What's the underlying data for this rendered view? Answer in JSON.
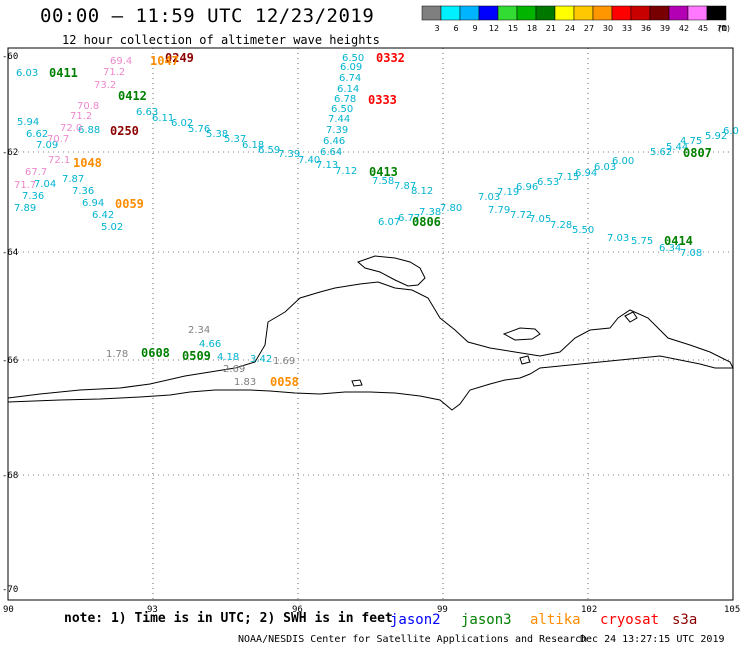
{
  "header": {
    "title": "00:00 – 11:59 UTC 12/23/2019",
    "subtitle": "12 hour collection of altimeter wave heights"
  },
  "colorbar": {
    "labels": [
      "3",
      "6",
      "9",
      "12",
      "15",
      "18",
      "21",
      "24",
      "27",
      "30",
      "33",
      "36",
      "39",
      "42",
      "45",
      "70"
    ],
    "unit": "(ft)",
    "colors": [
      "#7f7f7f",
      "#00f0ff",
      "#00b4ff",
      "#0000ff",
      "#32dc32",
      "#00b400",
      "#007800",
      "#ffff00",
      "#ffc800",
      "#ff9600",
      "#ff0000",
      "#c80000",
      "#780000",
      "#b400b4",
      "#ff78ff",
      "#000000"
    ]
  },
  "axes": {
    "x_ticks": [
      "90",
      "93",
      "96",
      "99",
      "102",
      "105"
    ],
    "y_ticks": [
      "-60",
      "-62",
      "-64",
      "-66",
      "-68",
      "-70"
    ]
  },
  "footer": {
    "note": "note:  1) Time is in UTC;  2) SWH is in feet",
    "satellites": [
      {
        "name": "jason2",
        "color": "#0000ff"
      },
      {
        "name": "jason3",
        "color": "#008000"
      },
      {
        "name": "altika",
        "color": "#ff8c00"
      },
      {
        "name": "cryosat",
        "color": "#ff0000"
      },
      {
        "name": "s3a",
        "color": "#8b0000"
      }
    ],
    "credit": "NOAA/NESDIS Center for Satellite Applications and Research",
    "timestamp": "Dec 24 13:27:15 UTC 2019"
  },
  "passes": [
    {
      "label": "0249",
      "color": "#8b0000"
    },
    {
      "label": "0332",
      "color": "#ff0000"
    },
    {
      "label": "0333",
      "color": "#ff0000"
    },
    {
      "label": "0411",
      "color": "#008000"
    },
    {
      "label": "0412",
      "color": "#008000"
    },
    {
      "label": "0250",
      "color": "#8b0000"
    },
    {
      "label": "1048",
      "color": "#ff8c00"
    },
    {
      "label": "0059",
      "color": "#ff8c00"
    },
    {
      "label": "0413",
      "color": "#008000"
    },
    {
      "label": "0806",
      "color": "#008000"
    },
    {
      "label": "0807",
      "color": "#008000"
    },
    {
      "label": "0414",
      "color": "#008000"
    },
    {
      "label": "0608",
      "color": "#008000"
    },
    {
      "label": "0509",
      "color": "#008000"
    },
    {
      "label": "0058",
      "color": "#ff8c00"
    },
    {
      "label": "1047",
      "color": "#ff8c00"
    }
  ],
  "values": [
    {
      "v": "6.03",
      "c": "#00b4d0"
    },
    {
      "v": "5.94",
      "c": "#00b4d0"
    },
    {
      "v": "6.62",
      "c": "#00b4d0"
    },
    {
      "v": "7.09",
      "c": "#00b4d0"
    },
    {
      "v": "7.04",
      "c": "#00b4d0"
    },
    {
      "v": "7.36",
      "c": "#00b4d0"
    },
    {
      "v": "7.89",
      "c": "#00b4d0"
    },
    {
      "v": "7.87",
      "c": "#00b4d0"
    },
    {
      "v": "7.36",
      "c": "#00b4d0"
    },
    {
      "v": "6.94",
      "c": "#00b4d0"
    },
    {
      "v": "6.42",
      "c": "#00b4d0"
    },
    {
      "v": "5.02",
      "c": "#00b4d0"
    },
    {
      "v": "6.88",
      "c": "#00b4d0"
    },
    {
      "v": "6.63",
      "c": "#00b4d0"
    },
    {
      "v": "6.11",
      "c": "#00b4d0"
    },
    {
      "v": "6.02",
      "c": "#00b4d0"
    },
    {
      "v": "5.76",
      "c": "#00b4d0"
    },
    {
      "v": "5.38",
      "c": "#00b4d0"
    },
    {
      "v": "5.37",
      "c": "#00b4d0"
    },
    {
      "v": "6.18",
      "c": "#00b4d0"
    },
    {
      "v": "6.59",
      "c": "#00b4d0"
    },
    {
      "v": "7.39",
      "c": "#00b4d0"
    },
    {
      "v": "7.40",
      "c": "#00b4d0"
    },
    {
      "v": "7.13",
      "c": "#00b4d0"
    },
    {
      "v": "7.12",
      "c": "#00b4d0"
    },
    {
      "v": "6.50",
      "c": "#00b4d0"
    },
    {
      "v": "6.09",
      "c": "#00b4d0"
    },
    {
      "v": "6.74",
      "c": "#00b4d0"
    },
    {
      "v": "6.14",
      "c": "#00b4d0"
    },
    {
      "v": "6.78",
      "c": "#00b4d0"
    },
    {
      "v": "6.50",
      "c": "#00b4d0"
    },
    {
      "v": "7.44",
      "c": "#00b4d0"
    },
    {
      "v": "7.39",
      "c": "#00b4d0"
    },
    {
      "v": "6.46",
      "c": "#00b4d0"
    },
    {
      "v": "6.64",
      "c": "#00b4d0"
    },
    {
      "v": "7.58",
      "c": "#00b4d0"
    },
    {
      "v": "7.87",
      "c": "#00b4d0"
    },
    {
      "v": "8.12",
      "c": "#00b4d0"
    },
    {
      "v": "7.19",
      "c": "#00b4d0"
    },
    {
      "v": "6.96",
      "c": "#00b4d0"
    },
    {
      "v": "6.53",
      "c": "#00b4d0"
    },
    {
      "v": "7.15",
      "c": "#00b4d0"
    },
    {
      "v": "6.94",
      "c": "#00b4d0"
    },
    {
      "v": "6.03",
      "c": "#00b4d0"
    },
    {
      "v": "6.00",
      "c": "#00b4d0"
    },
    {
      "v": "5.62",
      "c": "#00b4d0"
    },
    {
      "v": "5.44",
      "c": "#00b4d0"
    },
    {
      "v": "4.75",
      "c": "#00b4d0"
    },
    {
      "v": "5.92",
      "c": "#00b4d0"
    },
    {
      "v": "6.0",
      "c": "#00b4d0"
    },
    {
      "v": "6.07",
      "c": "#00b4d0"
    },
    {
      "v": "6.77",
      "c": "#00b4d0"
    },
    {
      "v": "7.38",
      "c": "#00b4d0"
    },
    {
      "v": "7.80",
      "c": "#00b4d0"
    },
    {
      "v": "7.03",
      "c": "#00b4d0"
    },
    {
      "v": "7.79",
      "c": "#00b4d0"
    },
    {
      "v": "7.72",
      "c": "#00b4d0"
    },
    {
      "v": "7.05",
      "c": "#00b4d0"
    },
    {
      "v": "7.28",
      "c": "#00b4d0"
    },
    {
      "v": "5.50",
      "c": "#00b4d0"
    },
    {
      "v": "7.03",
      "c": "#00b4d0"
    },
    {
      "v": "5.75",
      "c": "#00b4d0"
    },
    {
      "v": "6.34",
      "c": "#00b4d0"
    },
    {
      "v": "7.08",
      "c": "#00b4d0"
    },
    {
      "v": "4.66",
      "c": "#00b4d0"
    },
    {
      "v": "4.18",
      "c": "#00b4d0"
    },
    {
      "v": "3.42",
      "c": "#00b4d0"
    },
    {
      "v": "69.4",
      "c": "#ee88cc"
    },
    {
      "v": "71.2",
      "c": "#ee88cc"
    },
    {
      "v": "73.2",
      "c": "#ee88cc"
    },
    {
      "v": "70.8",
      "c": "#ee88cc"
    },
    {
      "v": "71.2",
      "c": "#ee88cc"
    },
    {
      "v": "72.0",
      "c": "#ee88cc"
    },
    {
      "v": "70.7",
      "c": "#ee88cc"
    },
    {
      "v": "67.7",
      "c": "#ee88cc"
    },
    {
      "v": "72.1",
      "c": "#ee88cc"
    },
    {
      "v": "71.7",
      "c": "#ee88cc"
    },
    {
      "v": "2.34",
      "c": "#808080"
    },
    {
      "v": "1.78",
      "c": "#808080"
    },
    {
      "v": "2.69",
      "c": "#808080"
    },
    {
      "v": "1.83",
      "c": "#808080"
    },
    {
      "v": "1.69",
      "c": "#808080"
    }
  ]
}
